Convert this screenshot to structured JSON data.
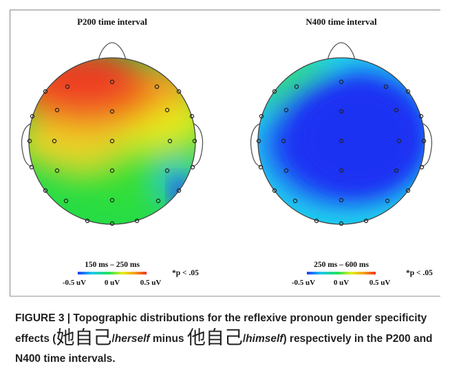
{
  "panels": [
    {
      "title": "P200 time interval",
      "scale_label": "150 ms – 250 ms",
      "ticks": [
        "-0.5 uV",
        "0 uV",
        "0.5 uV"
      ],
      "pvalue": "*p < .05"
    },
    {
      "title": "N400 time interval",
      "scale_label": "250 ms – 600 ms",
      "ticks": [
        "-0.5 uV",
        "0 uV",
        "0.5 uV"
      ],
      "pvalue": "*p < .05"
    }
  ],
  "colors": {
    "colormap": [
      "#1f3cf5",
      "#19c8ee",
      "#22e35a",
      "#e6ef1a",
      "#f5a31c",
      "#ef3521"
    ]
  },
  "caption": {
    "part1": "FIGURE 3 | Topographic distributions for the reflexive pronoun gender specificity effects (",
    "cjk1": "她自己",
    "slash1": "/",
    "word1": "herself",
    "minus": " minus ",
    "cjk2": "他自己",
    "slash2": "/",
    "word2": "himself",
    "part2": ") respectively in the P200 and N400 time intervals."
  }
}
